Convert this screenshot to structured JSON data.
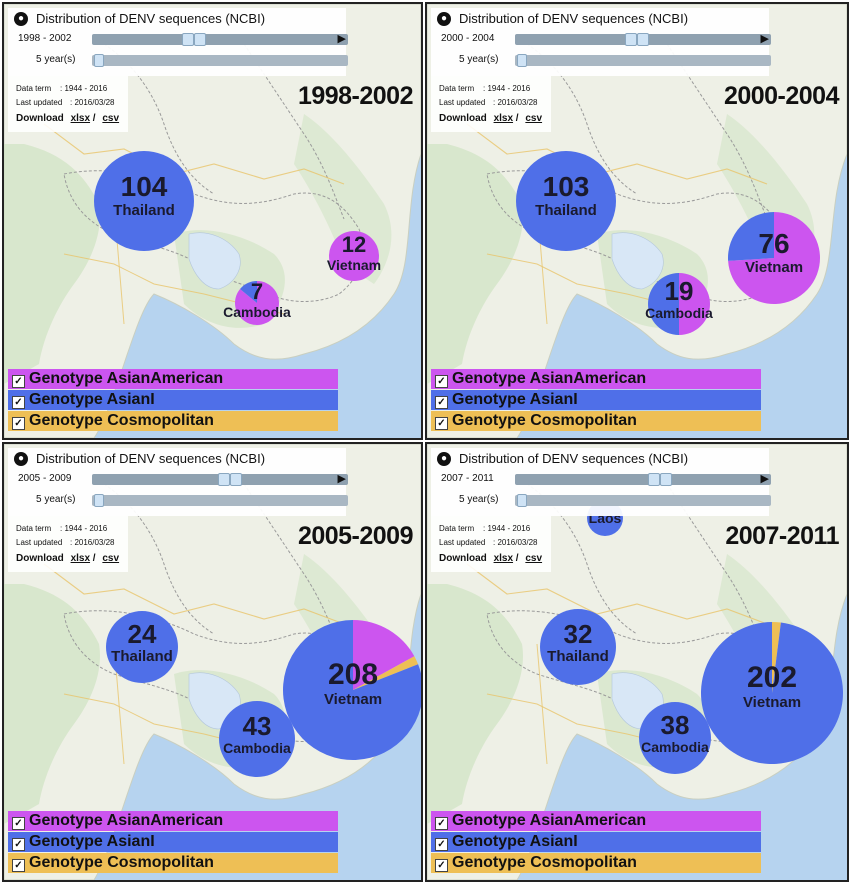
{
  "panels": [
    {
      "title": "Distribution of DENV sequences (NCBI)",
      "range": "1998 - 2002",
      "window": "5 year(s)",
      "year_label": "1998-2002",
      "data_term_label": "Data term",
      "data_term_value": ": 1944 - 2016",
      "last_updated_label": "Last updated",
      "last_updated_value": ": 2016/03/28",
      "download_label": "Download",
      "xlsx": "xlsx",
      "csv": "csv",
      "legend": [
        "Genotype AsianAmerican",
        "Genotype AsianI",
        "Genotype Cosmopolitan"
      ],
      "countries": [
        {
          "name": "Thailand",
          "count": "104",
          "asian_american": 0,
          "asian_i": 1.0,
          "cosmopolitan": 0
        },
        {
          "name": "Vietnam",
          "count": "12",
          "asian_american": 1.0,
          "asian_i": 0,
          "cosmopolitan": 0
        },
        {
          "name": "Cambodia",
          "count": "7",
          "asian_american": 0.86,
          "asian_i": 0.14,
          "cosmopolitan": 0
        }
      ]
    },
    {
      "title": "Distribution of DENV sequences (NCBI)",
      "range": "2000 - 2004",
      "window": "5 year(s)",
      "year_label": "2000-2004",
      "data_term_label": "Data term",
      "data_term_value": ": 1944 - 2016",
      "last_updated_label": "Last updated",
      "last_updated_value": ": 2016/03/28",
      "download_label": "Download",
      "xlsx": "xlsx",
      "csv": "csv",
      "legend": [
        "Genotype AsianAmerican",
        "Genotype AsianI",
        "Genotype Cosmopolitan"
      ],
      "countries": [
        {
          "name": "Thailand",
          "count": "103",
          "asian_american": 0,
          "asian_i": 1.0,
          "cosmopolitan": 0
        },
        {
          "name": "Vietnam",
          "count": "76",
          "asian_american": 0.74,
          "asian_i": 0.26,
          "cosmopolitan": 0
        },
        {
          "name": "Cambodia",
          "count": "19",
          "asian_american": 0.5,
          "asian_i": 0.5,
          "cosmopolitan": 0
        }
      ]
    },
    {
      "title": "Distribution of DENV sequences (NCBI)",
      "range": "2005 - 2009",
      "window": "5 year(s)",
      "year_label": "2005-2009",
      "data_term_label": "Data term",
      "data_term_value": ": 1944 - 2016",
      "last_updated_label": "Last updated",
      "last_updated_value": ": 2016/03/28",
      "download_label": "Download",
      "xlsx": "xlsx",
      "csv": "csv",
      "legend": [
        "Genotype AsianAmerican",
        "Genotype AsianI",
        "Genotype Cosmopolitan"
      ],
      "countries": [
        {
          "name": "Thailand",
          "count": "24",
          "asian_american": 0,
          "asian_i": 1.0,
          "cosmopolitan": 0
        },
        {
          "name": "Vietnam",
          "count": "208",
          "asian_american": 0.17,
          "asian_i": 0.81,
          "cosmopolitan": 0.02
        },
        {
          "name": "Cambodia",
          "count": "43",
          "asian_american": 0,
          "asian_i": 1.0,
          "cosmopolitan": 0
        }
      ]
    },
    {
      "title": "Distribution of DENV sequences (NCBI)",
      "range": "2007 - 2011",
      "window": "5 year(s)",
      "year_label": "2007-2011",
      "data_term_label": "Data term",
      "data_term_value": ": 1944 - 2016",
      "last_updated_label": "Last updated",
      "last_updated_value": ": 2016/03/28",
      "download_label": "Download",
      "xlsx": "xlsx",
      "csv": "csv",
      "legend": [
        "Genotype AsianAmerican",
        "Genotype AsianI",
        "Genotype Cosmopolitan"
      ],
      "countries": [
        {
          "name": "Thailand",
          "count": "32",
          "asian_american": 0,
          "asian_i": 1.0,
          "cosmopolitan": 0
        },
        {
          "name": "Vietnam",
          "count": "202",
          "asian_american": 0,
          "asian_i": 0.98,
          "cosmopolitan": 0.02
        },
        {
          "name": "Cambodia",
          "count": "38",
          "asian_american": 0,
          "asian_i": 1.0,
          "cosmopolitan": 0
        },
        {
          "name": "Laos",
          "count": "",
          "asian_american": 0,
          "asian_i": 1.0,
          "cosmopolitan": 0
        }
      ]
    }
  ],
  "colors": {
    "asian_american": "#cc55ef",
    "asian_i": "#4f6fe8",
    "cosmopolitan": "#eebf55",
    "water": "#b6d3ef",
    "land": "#eef0e6",
    "forest": "#cfe3c2"
  }
}
